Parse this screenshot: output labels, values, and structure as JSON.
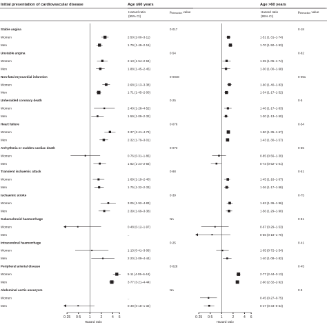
{
  "chart_data": {
    "type": "forest",
    "scale": "log",
    "column_header": "Initial presentation of cardiovascular disease",
    "panels": [
      {
        "title": "Age ≤60 years",
        "hr_label": "Hazard ratio",
        "ci_label": "(95% CI)",
        "p_label": "p",
        "p_sub": "interaction",
        "p_suffix": " value",
        "xlabel": "Hazard ratio",
        "ticks": [
          "0·25",
          "0·5",
          "1",
          "2",
          "4",
          "6"
        ],
        "tick_values": [
          0.25,
          0.5,
          1,
          2,
          4,
          6
        ],
        "xlim": [
          0.21,
          8.0
        ]
      },
      {
        "title": "Age >60 years",
        "hr_label": "Hazard ratio",
        "ci_label": "(95% CI)",
        "p_label": "p",
        "p_sub": "interaction",
        "p_suffix": " value",
        "xlabel": "Hazard ratio",
        "ticks": [
          "0·25",
          "0·5",
          "1",
          "2",
          "4",
          "6"
        ],
        "tick_values": [
          0.25,
          0.5,
          1,
          2,
          4,
          6
        ],
        "xlim": [
          0.21,
          8.0
        ]
      }
    ],
    "outcomes": [
      {
        "name": "Stable angina",
        "p": [
          "0·017",
          "0·18"
        ],
        "rows": [
          {
            "label": "Women",
            "cells": [
              {
                "text": "2·50 (2·00–3·11)",
                "hr": 2.5,
                "lo": 2.0,
                "hi": 3.11,
                "w": 1.8
              },
              {
                "text": "1·51 (1·31–1·74)",
                "hr": 1.51,
                "lo": 1.31,
                "hi": 1.74,
                "w": 1.7
              }
            ]
          },
          {
            "label": "Men",
            "cells": [
              {
                "text": "1·79 (1·49–2·16)",
                "hr": 1.79,
                "lo": 1.49,
                "hi": 2.16,
                "w": 1.8
              },
              {
                "text": "1·70 (1·50–1·93)",
                "hr": 1.7,
                "lo": 1.5,
                "hi": 1.93,
                "w": 1.9
              }
            ]
          }
        ]
      },
      {
        "name": "Unstable angina",
        "p": [
          "0·54",
          "0·82"
        ],
        "rows": [
          {
            "label": "Women",
            "cells": [
              {
                "text": "2·13 (1·54–2·94)",
                "hr": 2.13,
                "lo": 1.54,
                "hi": 2.94,
                "w": 1.2
              },
              {
                "text": "1·35 (1·05–1·74)",
                "hr": 1.35,
                "lo": 1.05,
                "hi": 1.74,
                "w": 1.2
              }
            ]
          },
          {
            "label": "Men",
            "cells": [
              {
                "text": "1·88 (1·45–2·45)",
                "hr": 1.88,
                "lo": 1.45,
                "hi": 2.45,
                "w": 1.3
              },
              {
                "text": "1·30 (1·00–1·68)",
                "hr": 1.3,
                "lo": 1.0,
                "hi": 1.68,
                "w": 1.2
              }
            ]
          }
        ]
      },
      {
        "name": "Non-fatal myocardial infarction",
        "p": [
          "0·0048",
          "0·051"
        ],
        "rows": [
          {
            "label": "Women",
            "cells": [
              {
                "text": "2·68 (2·13–3·38)",
                "hr": 2.68,
                "lo": 2.13,
                "hi": 3.38,
                "w": 1.5
              },
              {
                "text": "1·60 (1·40–1·83)",
                "hr": 1.6,
                "lo": 1.4,
                "hi": 1.83,
                "w": 1.7
              }
            ]
          },
          {
            "label": "Men",
            "cells": [
              {
                "text": "1·71 (1·45–2·00)",
                "hr": 1.71,
                "lo": 1.45,
                "hi": 2.0,
                "w": 2.1
              },
              {
                "text": "1·34 (1·17–1·52)",
                "hr": 1.34,
                "lo": 1.17,
                "hi": 1.52,
                "w": 1.8
              }
            ]
          }
        ]
      },
      {
        "name": "Unheralded coronary death",
        "p": [
          "0·25",
          "0·5"
        ],
        "rows": [
          {
            "label": "Women",
            "cells": [
              {
                "text": "2·40 (1·28–4·52)",
                "hr": 2.4,
                "lo": 1.28,
                "hi": 4.52,
                "w": 0.6
              },
              {
                "text": "1·46 (1·17–1·83)",
                "hr": 1.46,
                "lo": 1.17,
                "hi": 1.83,
                "w": 1.1
              }
            ]
          },
          {
            "label": "Men",
            "cells": [
              {
                "text": "1·59 (1·09–2·32)",
                "hr": 1.59,
                "lo": 1.09,
                "hi": 2.32,
                "w": 0.8
              },
              {
                "text": "1·30 (1·13–1·50)",
                "hr": 1.3,
                "lo": 1.13,
                "hi": 1.5,
                "w": 1.3
              }
            ]
          }
        ]
      },
      {
        "name": "Heart failure",
        "p": [
          "0·076",
          "0·54"
        ],
        "rows": [
          {
            "label": "Women",
            "cells": [
              {
                "text": "3·37 (2·41–4·73)",
                "hr": 3.37,
                "lo": 2.41,
                "hi": 4.73,
                "w": 1.2
              },
              {
                "text": "1·50 (1·35–1·67)",
                "hr": 1.5,
                "lo": 1.35,
                "hi": 1.67,
                "w": 2.0
              }
            ]
          },
          {
            "label": "Men",
            "cells": [
              {
                "text": "2·32 (1·79–3·01)",
                "hr": 2.32,
                "lo": 1.79,
                "hi": 3.01,
                "w": 1.3
              },
              {
                "text": "1·43 (1·30–1·57)",
                "hr": 1.43,
                "lo": 1.3,
                "hi": 1.57,
                "w": 2.0
              }
            ]
          }
        ]
      },
      {
        "name": "Arrhythmia or sudden cardiac death",
        "p": [
          "0·073",
          "0·55"
        ],
        "rows": [
          {
            "label": "Women",
            "cells": [
              {
                "text": "0·76 (0·31–1·86)",
                "hr": 0.76,
                "lo": 0.31,
                "hi": 1.86,
                "w": 0.5
              },
              {
                "text": "0·85 (0·56–1·30)",
                "hr": 0.85,
                "lo": 0.56,
                "hi": 1.3,
                "w": 0.7
              }
            ]
          },
          {
            "label": "Men",
            "cells": [
              {
                "text": "1·82 (1·24–2·66)",
                "hr": 1.82,
                "lo": 1.24,
                "hi": 2.66,
                "w": 0.9
              },
              {
                "text": "0·73 (0·52–1·01)",
                "hr": 0.73,
                "lo": 0.52,
                "hi": 1.01,
                "w": 0.8
              }
            ]
          }
        ]
      },
      {
        "name": "Transient ischaemic attack",
        "p": [
          "0·88",
          "0·51"
        ],
        "rows": [
          {
            "label": "Women",
            "cells": [
              {
                "text": "1·69 (1·19–2·40)",
                "hr": 1.69,
                "lo": 1.19,
                "hi": 2.4,
                "w": 1.0
              },
              {
                "text": "1·45 (1·16–1·67)",
                "hr": 1.45,
                "lo": 1.16,
                "hi": 1.67,
                "w": 1.4
              }
            ]
          },
          {
            "label": "Men",
            "cells": [
              {
                "text": "1·75 (1·32–2·33)",
                "hr": 1.75,
                "lo": 1.32,
                "hi": 2.33,
                "w": 1.1
              },
              {
                "text": "1·36 (1·17–1·58)",
                "hr": 1.36,
                "lo": 1.17,
                "hi": 1.58,
                "w": 1.5
              }
            ]
          }
        ]
      },
      {
        "name": "Ischaemic stroke",
        "p": [
          "0·39",
          "0·75"
        ],
        "rows": [
          {
            "label": "Women",
            "cells": [
              {
                "text": "3·05 (1·92–4·83)",
                "hr": 3.05,
                "lo": 1.92,
                "hi": 4.83,
                "w": 0.8
              },
              {
                "text": "1·63 (1·36–1·96)",
                "hr": 1.63,
                "lo": 1.36,
                "hi": 1.96,
                "w": 1.4
              }
            ]
          },
          {
            "label": "Men",
            "cells": [
              {
                "text": "2·39 (1·69–3·38)",
                "hr": 2.39,
                "lo": 1.69,
                "hi": 3.38,
                "w": 1.0
              },
              {
                "text": "1·56 (1·29–1·90)",
                "hr": 1.56,
                "lo": 1.29,
                "hi": 1.9,
                "w": 1.4
              }
            ]
          }
        ]
      },
      {
        "name": "Subarachnoid haemorrhage",
        "p": [
          "NA",
          "0·81"
        ],
        "rows": [
          {
            "label": "Women",
            "cells": [
              {
                "text": "0·48 (0·12–1·97)",
                "hr": 0.48,
                "lo": 0.12,
                "hi": 1.97,
                "w": 0.4
              },
              {
                "text": "0·67 (0·29–1·53)",
                "hr": 0.67,
                "lo": 0.29,
                "hi": 1.53,
                "w": 0.4
              }
            ]
          },
          {
            "label": "Men",
            "cells": [
              {
                "text": "..",
                "hr": null,
                "lo": null,
                "hi": null,
                "w": 0
              },
              {
                "text": "0·56 (0·18–1·70)",
                "hr": 0.56,
                "lo": 0.18,
                "hi": 1.7,
                "w": 0.4
              }
            ]
          }
        ]
      },
      {
        "name": "Intracerebral haemorrhage",
        "p": [
          "0·25",
          "0·41"
        ],
        "rows": [
          {
            "label": "Women",
            "cells": [
              {
                "text": "1·13 (0·41–3·08)",
                "hr": 1.13,
                "lo": 0.41,
                "hi": 3.08,
                "w": 0.4
              },
              {
                "text": "1·05 (0·72–1·54)",
                "hr": 1.05,
                "lo": 0.72,
                "hi": 1.54,
                "w": 0.6
              }
            ]
          },
          {
            "label": "Men",
            "cells": [
              {
                "text": "2·20 (1·09–4·44)",
                "hr": 2.2,
                "lo": 1.09,
                "hi": 4.44,
                "w": 0.5
              },
              {
                "text": "1·40 (1·08–1·82)",
                "hr": 1.4,
                "lo": 1.08,
                "hi": 1.82,
                "w": 0.8
              }
            ]
          }
        ]
      },
      {
        "name": "Peripheral arterial disease",
        "p": [
          "0·028",
          "0·45"
        ],
        "rows": [
          {
            "label": "Women",
            "cells": [
              {
                "text": "5·11 (4·05–6·44)",
                "hr": 5.11,
                "lo": 4.05,
                "hi": 6.44,
                "w": 1.8
              },
              {
                "text": "2·77 (2·44–3·13)",
                "hr": 2.77,
                "lo": 2.44,
                "hi": 3.13,
                "w": 2.1
              }
            ]
          },
          {
            "label": "Men",
            "cells": [
              {
                "text": "3·77 (3·21–4·44)",
                "hr": 3.77,
                "lo": 3.21,
                "hi": 4.44,
                "w": 2.2
              },
              {
                "text": "2·60 (2·32–2·92)",
                "hr": 2.6,
                "lo": 2.32,
                "hi": 2.92,
                "w": 2.1
              }
            ]
          }
        ]
      },
      {
        "name": "Abdominal aortic aneurysm",
        "p": [
          "NA",
          "0·9"
        ],
        "rows": [
          {
            "label": "Women",
            "cells": [
              {
                "text": "..",
                "hr": null,
                "lo": null,
                "hi": null,
                "w": 0
              },
              {
                "text": "0·45 (0·27–0·75)",
                "hr": 0.45,
                "lo": 0.27,
                "hi": 0.75,
                "w": 0.6
              }
            ]
          },
          {
            "label": "Men",
            "cells": [
              {
                "text": "0·49 (0·18–1·32)",
                "hr": 0.49,
                "lo": 0.18,
                "hi": 1.32,
                "w": 0.4
              },
              {
                "text": "0·47 (0·34–0·64)",
                "hr": 0.47,
                "lo": 0.34,
                "hi": 0.64,
                "w": 0.8
              }
            ]
          }
        ]
      }
    ]
  }
}
